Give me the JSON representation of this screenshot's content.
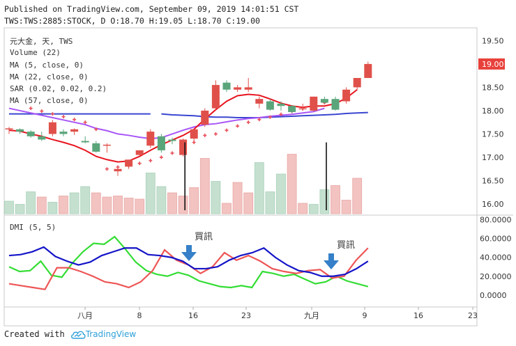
{
  "header": {
    "line1": "Published on TradingView.com, September 09, 2019 14:01:51 CST",
    "line2": "TWS:TWS:2885:STOCK, D O:18.70 H:19.05 L:18.70 C:19.00"
  },
  "legend": [
    "元大金, 天, TWS",
    "Volume (22)",
    "MA (5, close, 0)",
    "MA (22, close, 0)",
    "SAR (0.02, 0.02, 0.2)",
    "MA (57, close, 0)"
  ],
  "dmi_label": "DMI (5, 5)",
  "footer": {
    "created_with": "Created with",
    "brand": "TradingView"
  },
  "colors": {
    "up": "#e0504a",
    "down": "#5aa57a",
    "ma5": "#e8141e",
    "ma22": "#a855f7",
    "ma57": "#3a46d0",
    "sar": "#e8505a",
    "di_plus": "#33dd33",
    "di_minus": "#ee5555",
    "adx": "#1414c8",
    "arrow": "#3580c8"
  },
  "chart_data": [
    {
      "type": "candlestick",
      "ylim": [
        15.85,
        19.7
      ],
      "yticks": [
        "19.50",
        "19.00",
        "18.50",
        "18.00",
        "17.50",
        "17.00",
        "16.50",
        "16.00"
      ],
      "last_price_label": "19.00",
      "xticks": [
        {
          "label": "八月",
          "day": 8
        },
        {
          "label": "8",
          "day": 18
        },
        {
          "label": "16",
          "day": 24
        },
        {
          "label": "23",
          "day": 29
        },
        {
          "label": "九月",
          "day": 35
        },
        {
          "label": "9",
          "day": 40
        },
        {
          "label": "16",
          "day": 45
        },
        {
          "label": "23",
          "day": 50
        }
      ],
      "candles": [
        {
          "o": 17.6,
          "h": 17.65,
          "l": 17.5,
          "c": 17.62
        },
        {
          "o": 17.6,
          "h": 17.62,
          "l": 17.5,
          "c": 17.55
        },
        {
          "o": 17.55,
          "h": 17.58,
          "l": 17.42,
          "c": 17.45
        },
        {
          "o": 17.45,
          "h": 17.55,
          "l": 17.35,
          "c": 17.38
        },
        {
          "o": 17.5,
          "h": 17.8,
          "l": 17.45,
          "c": 17.75
        },
        {
          "o": 17.55,
          "h": 17.6,
          "l": 17.45,
          "c": 17.5
        },
        {
          "o": 17.55,
          "h": 17.62,
          "l": 17.48,
          "c": 17.6
        },
        {
          "o": 17.35,
          "h": 17.45,
          "l": 17.3,
          "c": 17.32
        },
        {
          "o": 17.3,
          "h": 17.35,
          "l": 17.1,
          "c": 17.12
        },
        {
          "o": 17.25,
          "h": 17.3,
          "l": 17.1,
          "c": 17.27
        },
        {
          "o": 16.7,
          "h": 16.75,
          "l": 16.6,
          "c": 16.75
        },
        {
          "o": 16.8,
          "h": 16.95,
          "l": 16.75,
          "c": 16.95
        },
        {
          "o": 17.05,
          "h": 17.15,
          "l": 17.0,
          "c": 17.15
        },
        {
          "o": 17.25,
          "h": 17.6,
          "l": 17.2,
          "c": 17.55
        },
        {
          "o": 17.45,
          "h": 17.5,
          "l": 17.1,
          "c": 17.15
        },
        {
          "o": 17.38,
          "h": 17.42,
          "l": 17.28,
          "c": 17.35
        },
        {
          "o": 17.05,
          "h": 17.4,
          "l": 17.02,
          "c": 17.38
        },
        {
          "o": 17.4,
          "h": 17.6,
          "l": 17.35,
          "c": 17.6
        },
        {
          "o": 17.7,
          "h": 18.05,
          "l": 17.65,
          "c": 18.0
        },
        {
          "o": 18.05,
          "h": 18.65,
          "l": 18.0,
          "c": 18.55
        },
        {
          "o": 18.6,
          "h": 18.65,
          "l": 18.4,
          "c": 18.45
        },
        {
          "o": 18.45,
          "h": 18.55,
          "l": 18.4,
          "c": 18.5
        },
        {
          "o": 18.45,
          "h": 18.7,
          "l": 18.4,
          "c": 18.5
        },
        {
          "o": 18.15,
          "h": 18.3,
          "l": 18.05,
          "c": 18.25
        },
        {
          "o": 18.2,
          "h": 18.25,
          "l": 18.0,
          "c": 18.02
        },
        {
          "o": 18.15,
          "h": 18.2,
          "l": 18.0,
          "c": 18.1
        },
        {
          "o": 18.1,
          "h": 18.12,
          "l": 17.95,
          "c": 17.97
        },
        {
          "o": 18.05,
          "h": 18.15,
          "l": 18.0,
          "c": 18.05
        },
        {
          "o": 18.0,
          "h": 18.3,
          "l": 17.98,
          "c": 18.3
        },
        {
          "o": 18.25,
          "h": 18.3,
          "l": 18.15,
          "c": 18.17
        },
        {
          "o": 18.25,
          "h": 18.3,
          "l": 18.0,
          "c": 18.02
        },
        {
          "o": 18.2,
          "h": 18.5,
          "l": 18.15,
          "c": 18.45
        },
        {
          "o": 18.5,
          "h": 18.7,
          "l": 18.45,
          "c": 18.7
        },
        {
          "o": 18.7,
          "h": 19.05,
          "l": 18.7,
          "c": 19.0
        }
      ],
      "volume": [
        12,
        9,
        21,
        16,
        11,
        17,
        20,
        26,
        20,
        16,
        17,
        15,
        14,
        39,
        26,
        20,
        17,
        25,
        53,
        31,
        10,
        30,
        20,
        49,
        21,
        38,
        57,
        10,
        9,
        23,
        27,
        13,
        34
      ],
      "ma5": [
        17.58,
        17.56,
        17.5,
        17.45,
        17.38,
        17.32,
        17.25,
        17.15,
        17.02,
        16.95,
        16.9,
        16.92,
        17.02,
        17.15,
        17.27,
        17.37,
        17.47,
        17.6,
        17.82,
        18.02,
        18.2,
        18.32,
        18.35,
        18.33,
        18.25,
        18.16,
        18.1,
        18.07,
        18.1,
        18.1,
        18.15,
        18.27,
        18.45
      ],
      "ma22": [
        18.05,
        18.0,
        17.95,
        17.9,
        17.85,
        17.8,
        17.75,
        17.7,
        17.62,
        17.57,
        17.5,
        17.47,
        17.43,
        17.4,
        17.42,
        17.5,
        17.58,
        17.65,
        17.7,
        17.72,
        17.76,
        17.8,
        17.83,
        17.85,
        17.88,
        17.9,
        17.92,
        17.95,
        17.98,
        18.05
      ],
      "ma57": [
        17.93,
        17.91,
        17.9,
        17.89,
        17.87,
        17.86,
        17.86,
        17.85,
        17.85,
        17.85,
        17.86,
        17.87,
        17.88,
        17.89,
        17.9,
        17.91,
        17.92,
        17.94,
        17.95,
        17.96
      ],
      "sar": [
        18.05,
        17.99,
        17.93,
        17.87,
        17.81,
        17.75,
        17.6,
        16.75,
        16.79,
        16.82,
        16.87,
        16.93,
        17.0,
        17.09,
        17.19,
        17.32,
        17.47,
        17.5,
        17.58,
        17.67,
        17.75,
        17.81,
        17.86,
        17.92,
        17.98,
        18.04,
        18.09,
        18.17
      ]
    },
    {
      "type": "line",
      "title": "DMI (5, 5)",
      "ylim": [
        -12,
        82
      ],
      "yticks": [
        "80.0000",
        "60.0000",
        "40.0000",
        "20.0000",
        "0.0000"
      ],
      "series": [
        {
          "values": [
            30,
            25,
            26,
            36,
            21,
            19,
            34,
            46,
            55,
            54,
            62,
            49,
            35,
            26,
            22,
            20,
            24,
            21,
            15,
            12,
            9,
            8,
            10,
            8,
            25,
            23,
            20,
            22,
            17,
            12,
            14,
            20,
            15,
            12,
            9
          ]
        },
        {
          "values": [
            12,
            10,
            8,
            6,
            29,
            29,
            25,
            20,
            14,
            12,
            8,
            14,
            26,
            48,
            37,
            32,
            23,
            30,
            45,
            37,
            42,
            36,
            28,
            25,
            23,
            26,
            27,
            18,
            20,
            37,
            50
          ]
        },
        {
          "values": [
            42,
            43,
            46,
            51,
            41,
            36,
            32,
            35,
            42,
            46,
            50,
            50,
            43,
            42,
            40,
            36,
            28,
            28,
            30,
            37,
            42,
            45,
            50,
            40,
            32,
            26,
            24,
            20,
            20,
            22,
            28,
            36
          ]
        }
      ],
      "annotations": [
        "買訊",
        "買訊"
      ]
    }
  ]
}
